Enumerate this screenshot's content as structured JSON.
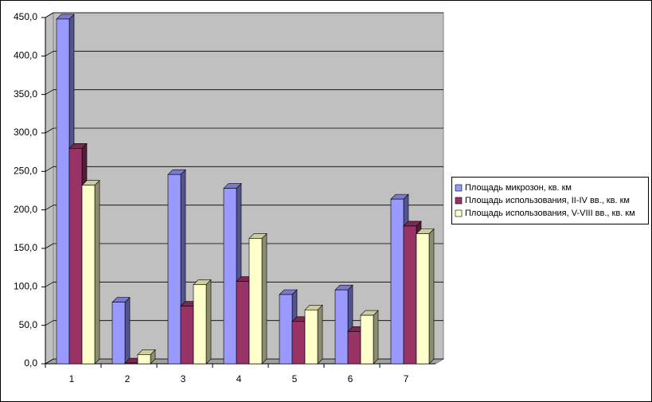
{
  "chart_data": {
    "type": "bar3d",
    "categories": [
      "1",
      "2",
      "3",
      "4",
      "5",
      "6",
      "7"
    ],
    "series": [
      {
        "name": "Площадь микрозон, кв. км",
        "color": "#9999ff",
        "values": [
          448,
          80,
          246,
          228,
          90,
          96,
          214
        ]
      },
      {
        "name": "Площадь использования, II-IV вв., кв. км",
        "color": "#993366",
        "values": [
          280,
          1,
          75,
          107,
          55,
          42,
          179
        ]
      },
      {
        "name": "Площадь использования, V-VIII вв., кв. км",
        "color": "#ffffcc",
        "values": [
          232,
          12,
          103,
          163,
          70,
          63,
          169
        ]
      }
    ],
    "ylim": [
      0,
      450
    ],
    "yticks": [
      {
        "value": 0,
        "label": "0,0"
      },
      {
        "value": 50,
        "label": "50,0"
      },
      {
        "value": 100,
        "label": "100,0"
      },
      {
        "value": 150,
        "label": "150,0"
      },
      {
        "value": 200,
        "label": "200,0"
      },
      {
        "value": 250,
        "label": "250,0"
      },
      {
        "value": 300,
        "label": "300,0"
      },
      {
        "value": 350,
        "label": "350,0"
      },
      {
        "value": 400,
        "label": "400,0"
      },
      {
        "value": 450,
        "label": "450,0"
      }
    ],
    "grid": true,
    "legend": "right"
  }
}
